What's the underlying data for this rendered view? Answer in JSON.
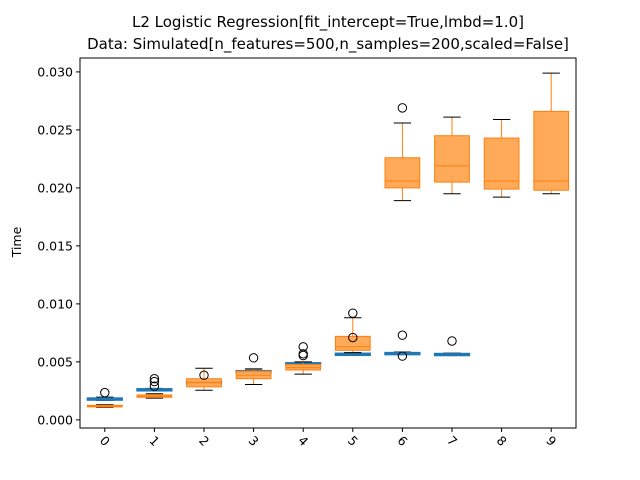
{
  "chart_data": {
    "type": "box",
    "title": [
      "L2 Logistic Regression[fit_intercept=True,lmbd=1.0]",
      "Data: Simulated[n_features=500,n_samples=200,scaled=False]"
    ],
    "xlabel": "",
    "ylabel": "Time",
    "categories": [
      "0",
      "1",
      "2",
      "3",
      "4",
      "5",
      "6",
      "7",
      "8",
      "9"
    ],
    "ylim": [
      -0.0007,
      0.0312
    ],
    "yticks": [
      "0.000",
      "0.005",
      "0.010",
      "0.015",
      "0.020",
      "0.025",
      "0.030"
    ],
    "grid": false,
    "colors": {
      "blue": "#1f77b4",
      "orange": "#ff7f0e",
      "orange_fill": "#ffa54f"
    },
    "series": [
      {
        "color": "#1f77b4",
        "boxes": [
          {
            "x": 0,
            "q1": 0.00172,
            "median": 0.00178,
            "q3": 0.00188,
            "whislo": 0.00168,
            "whishi": 0.00196,
            "fliers": [
              0.00235
            ]
          },
          {
            "x": 1,
            "q1": 0.00258,
            "median": 0.00262,
            "q3": 0.00268,
            "whislo": 0.00255,
            "whishi": 0.00272,
            "fliers": [
              0.0033,
              0.00355
            ]
          },
          {
            "x": 2,
            "q1": 0.00322,
            "median": 0.00326,
            "q3": 0.0033,
            "whislo": 0.0032,
            "whishi": 0.00334,
            "fliers": []
          },
          {
            "x": 3,
            "q1": 0.00412,
            "median": 0.00418,
            "q3": 0.00424,
            "whislo": 0.00408,
            "whishi": 0.00428,
            "fliers": []
          },
          {
            "x": 4,
            "q1": 0.00478,
            "median": 0.00485,
            "q3": 0.00492,
            "whislo": 0.00474,
            "whishi": 0.00497,
            "fliers": [
              0.00555,
              0.0057
            ]
          },
          {
            "x": 5,
            "q1": 0.00562,
            "median": 0.00568,
            "q3": 0.00574,
            "whislo": 0.00558,
            "whishi": 0.00578,
            "fliers": []
          },
          {
            "x": 6,
            "q1": 0.00568,
            "median": 0.00574,
            "q3": 0.0058,
            "whislo": 0.00565,
            "whishi": 0.00585,
            "fliers": [
              0.0055,
              0.0073
            ]
          },
          {
            "x": 7,
            "q1": 0.00562,
            "median": 0.00567,
            "q3": 0.00572,
            "whislo": 0.00558,
            "whishi": 0.00576,
            "fliers": [
              0.0068
            ]
          }
        ]
      },
      {
        "color": "#ff7f0e",
        "fill": "#ffa54f",
        "boxes": [
          {
            "x": 0,
            "q1": 0.00112,
            "median": 0.00118,
            "q3": 0.00126,
            "whislo": 0.00108,
            "whishi": 0.00132,
            "fliers": []
          },
          {
            "x": 1,
            "q1": 0.00195,
            "median": 0.00205,
            "q3": 0.00215,
            "whislo": 0.00188,
            "whishi": 0.00225,
            "fliers": [
              0.0029
            ]
          },
          {
            "x": 2,
            "q1": 0.00285,
            "median": 0.00322,
            "q3": 0.00355,
            "whislo": 0.00255,
            "whishi": 0.00445,
            "fliers": [
              0.00385
            ]
          },
          {
            "x": 3,
            "q1": 0.00355,
            "median": 0.00385,
            "q3": 0.0042,
            "whislo": 0.00305,
            "whishi": 0.0044,
            "fliers": [
              0.00535
            ]
          },
          {
            "x": 4,
            "q1": 0.0043,
            "median": 0.0045,
            "q3": 0.00478,
            "whislo": 0.00395,
            "whishi": 0.005,
            "fliers": [
              0.0063
            ]
          },
          {
            "x": 5,
            "q1": 0.006,
            "median": 0.0063,
            "q3": 0.0072,
            "whislo": 0.0058,
            "whishi": 0.0088,
            "fliers": [
              0.0071,
              0.0092
            ]
          },
          {
            "x": 6,
            "q1": 0.02,
            "median": 0.0206,
            "q3": 0.0226,
            "whislo": 0.0189,
            "whishi": 0.0256,
            "fliers": [
              0.0269
            ]
          },
          {
            "x": 7,
            "q1": 0.0205,
            "median": 0.0219,
            "q3": 0.0245,
            "whislo": 0.0195,
            "whishi": 0.0261,
            "fliers": []
          },
          {
            "x": 8,
            "q1": 0.0199,
            "median": 0.0206,
            "q3": 0.0243,
            "whislo": 0.0192,
            "whishi": 0.0259,
            "fliers": []
          },
          {
            "x": 9,
            "q1": 0.0198,
            "median": 0.0206,
            "q3": 0.0266,
            "whislo": 0.0195,
            "whishi": 0.0299,
            "fliers": []
          }
        ]
      }
    ]
  }
}
